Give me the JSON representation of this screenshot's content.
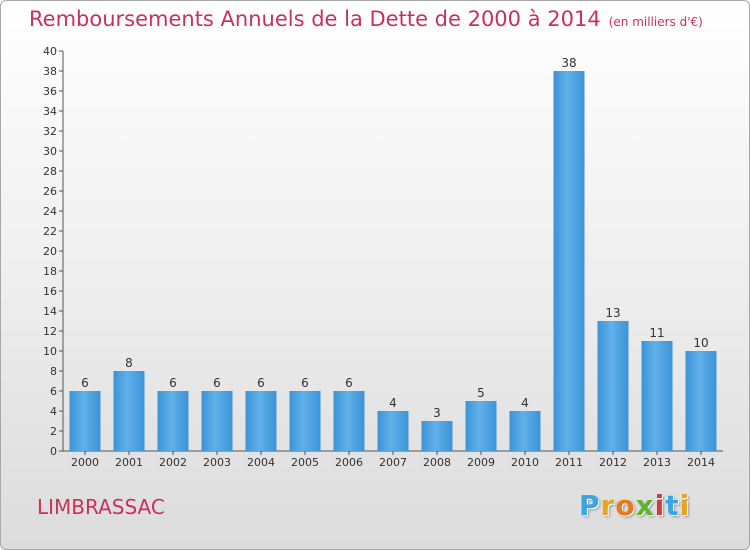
{
  "title": "Remboursements Annuels de la Dette de 2000 à 2014",
  "unit": "(en milliers d'€)",
  "commune": "LIMBRASSAC",
  "logo": {
    "letters": [
      "P",
      "r",
      "o",
      "x",
      "i",
      "t",
      "i"
    ],
    "colors": [
      "#3aa6e0",
      "#e8a21e",
      "#e87a1e",
      "#5fb332",
      "#d33b3b",
      "#3aa6e0",
      "#e8a21e"
    ]
  },
  "colors": {
    "bar": "#3b93d6",
    "bar_light": "#62b0ea",
    "title": "#c8325a"
  },
  "chart_data": {
    "type": "bar",
    "categories": [
      "2000",
      "2001",
      "2002",
      "2003",
      "2004",
      "2005",
      "2006",
      "2007",
      "2008",
      "2009",
      "2010",
      "2011",
      "2012",
      "2013",
      "2014"
    ],
    "values": [
      6,
      8,
      6,
      6,
      6,
      6,
      6,
      4,
      3,
      5,
      4,
      38,
      13,
      11,
      10
    ],
    "title": "Remboursements Annuels de la Dette de 2000 à 2014",
    "xlabel": "",
    "ylabel": "",
    "ylim": [
      0,
      40
    ],
    "yticks": [
      0,
      2,
      4,
      6,
      8,
      10,
      12,
      14,
      16,
      18,
      20,
      22,
      24,
      26,
      28,
      30,
      32,
      34,
      36,
      38,
      40
    ],
    "grid": false,
    "data_labels": true
  }
}
